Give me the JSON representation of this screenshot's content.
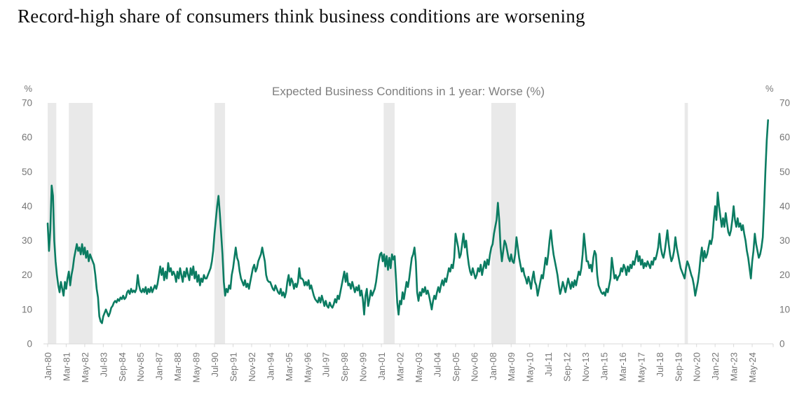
{
  "page": {
    "title": "Record-high share of consumers think business conditions are worsening"
  },
  "chart_data": {
    "type": "line",
    "title": "Expected Business Conditions in 1 year: Worse (%)",
    "unit_label": "%",
    "ylim": [
      0,
      70
    ],
    "yticks": [
      0,
      10,
      20,
      30,
      40,
      50,
      60,
      70
    ],
    "x_first_month": "Jan-80",
    "x_tick_month_step": 14,
    "x_tick_labels": [
      "Jan-80",
      "Mar-81",
      "May-82",
      "Jul-83",
      "Sep-84",
      "Nov-85",
      "Jan-87",
      "Mar-88",
      "May-89",
      "Jul-90",
      "Sep-91",
      "Nov-92",
      "Jan-94",
      "Mar-95",
      "May-96",
      "Jul-97",
      "Sep-98",
      "Nov-99",
      "Jan-01",
      "Mar-02",
      "May-03",
      "Jul-04",
      "Sep-05",
      "Nov-06",
      "Jan-08",
      "Mar-09",
      "May-10",
      "Jul-11",
      "Sep-12",
      "Nov-13",
      "Jan-15",
      "Mar-16",
      "May-17",
      "Jul-18",
      "Sep-19",
      "Nov-20",
      "Jan-22",
      "Mar-23",
      "May-24"
    ],
    "recession_bands_months": [
      [
        0,
        6.5
      ],
      [
        16,
        34
      ],
      [
        126,
        134
      ],
      [
        253.7,
        262
      ],
      [
        335,
        353.5
      ],
      [
        481,
        483.5
      ]
    ],
    "colors": {
      "line": "#0b7c62",
      "recession_band": "#e9e9e9",
      "axis": "#d9d9d9",
      "tick_label": "#767676",
      "chart_title": "#7f7f7f",
      "page_title": "#0d0d0d"
    },
    "values_monthly_from_jan_1980": [
      35,
      27,
      33,
      46,
      43,
      30,
      24,
      20,
      17,
      15,
      18,
      16,
      14,
      18,
      16,
      19,
      21,
      17,
      20,
      22,
      25,
      27,
      29,
      27,
      28,
      26,
      29,
      26,
      28,
      25,
      27,
      24,
      26,
      25,
      24,
      23,
      20,
      16,
      13.5,
      8,
      6.5,
      6,
      8,
      9,
      10,
      9,
      8,
      9,
      10.5,
      11,
      12,
      12.5,
      12,
      13,
      12.5,
      13.5,
      13,
      14,
      13,
      13.5,
      15,
      15.5,
      14.5,
      16,
      15,
      15.5,
      15,
      16,
      20,
      17,
      15.5,
      15,
      16,
      15,
      16.5,
      14.5,
      16,
      15,
      16.5,
      15,
      16,
      17,
      16,
      17.5,
      20,
      22.5,
      20,
      22,
      18.5,
      21,
      19,
      23.5,
      21,
      22,
      20,
      21,
      20,
      18,
      21,
      19,
      22,
      20,
      18,
      21,
      19.5,
      22,
      20,
      18.5,
      22,
      20,
      22.5,
      19,
      21,
      18,
      20,
      17,
      19,
      18,
      20,
      19,
      19,
      20,
      21,
      22,
      24,
      27,
      32,
      36,
      40,
      43,
      38,
      32,
      26,
      18,
      14,
      16,
      15,
      17,
      16,
      20,
      22,
      25,
      28,
      25,
      24,
      21,
      19,
      18,
      17,
      18.5,
      16.5,
      17.5,
      16,
      18,
      20,
      22,
      23,
      21,
      22,
      24,
      25,
      26,
      28,
      26,
      24,
      20,
      18.5,
      18,
      18,
      17,
      16,
      15.5,
      17,
      16,
      15,
      14.5,
      16,
      14,
      15,
      13.5,
      15,
      18,
      20,
      17,
      19,
      18,
      16,
      17.5,
      16.5,
      18,
      22,
      19,
      19,
      18.5,
      17,
      18,
      17,
      18.5,
      16,
      17,
      15.5,
      14,
      13,
      12.5,
      12,
      13.5,
      12,
      14,
      12.5,
      11,
      12.5,
      11,
      10.5,
      12,
      11,
      10.5,
      11.5,
      13,
      12,
      14,
      13,
      15,
      17,
      19,
      21,
      18,
      20.5,
      17,
      17.5,
      16,
      18,
      16.5,
      15,
      16.5,
      15.5,
      17,
      14,
      15.5,
      13,
      8.5,
      14,
      16,
      11,
      13,
      15.5,
      14,
      15,
      16,
      18,
      21,
      24,
      26,
      26.5,
      24,
      26,
      22.5,
      25.5,
      21.5,
      25,
      22,
      26,
      24.5,
      25.5,
      19,
      12,
      8.5,
      12.5,
      11.5,
      15,
      13,
      15.5,
      18,
      16.5,
      19,
      22,
      25,
      26,
      28,
      24,
      15,
      12.5,
      15,
      14,
      16,
      15,
      16.5,
      14.5,
      15.5,
      14,
      12,
      10,
      12.5,
      14,
      13,
      15,
      16.5,
      15,
      17,
      18.5,
      17,
      19,
      18,
      20,
      22,
      21,
      23,
      22,
      25,
      32,
      30,
      28,
      25,
      26,
      29,
      32,
      28,
      30,
      26,
      23,
      21,
      20,
      22,
      20.5,
      19,
      20,
      22,
      21,
      23,
      20,
      22,
      24,
      22,
      24.5,
      23,
      26,
      28,
      29,
      32,
      34,
      36,
      41,
      36,
      28,
      24,
      27,
      30,
      29,
      27,
      25,
      24,
      26,
      24,
      23.5,
      26,
      31,
      28,
      25,
      23,
      21,
      22,
      20,
      19,
      17.5,
      19.5,
      18,
      16,
      19,
      21,
      18,
      17,
      14,
      16,
      18,
      20,
      19,
      22,
      25,
      23,
      26,
      30,
      33,
      29,
      26,
      24,
      22,
      20,
      17,
      14.5,
      16,
      18,
      16.5,
      15,
      17,
      19,
      17.5,
      16,
      18,
      16.5,
      18.5,
      17,
      19,
      21,
      20,
      22,
      26,
      32,
      28,
      24,
      24,
      22,
      23,
      21,
      25,
      27,
      26,
      20,
      17,
      16,
      15,
      14.5,
      15,
      14,
      16,
      15,
      17,
      19,
      25,
      22,
      19,
      20,
      18.5,
      19.5,
      20,
      22,
      21,
      23,
      22,
      20,
      22.5,
      21,
      23,
      22,
      24,
      23,
      25,
      27,
      24,
      25.5,
      23,
      24.5,
      22,
      23.5,
      22.5,
      24,
      23,
      22,
      24,
      23,
      25,
      24.5,
      26,
      28,
      32,
      28,
      26,
      25,
      27,
      30,
      33,
      29,
      26,
      24,
      25,
      27,
      31,
      28,
      26,
      24,
      22,
      21,
      20,
      19,
      22,
      24,
      23,
      21.5,
      20,
      19,
      17,
      14,
      16,
      18,
      21,
      25,
      28,
      24,
      27,
      25,
      26,
      28,
      30,
      29,
      31,
      36,
      40,
      36,
      44,
      40,
      37,
      34,
      36.5,
      34,
      38,
      35,
      32.5,
      31.5,
      33,
      36,
      40,
      36,
      34,
      36.5,
      34,
      35,
      33,
      34.5,
      32,
      30,
      27,
      25,
      22,
      19,
      24,
      27,
      32,
      29,
      27,
      25,
      26,
      28,
      31,
      40,
      50,
      59,
      65
    ]
  }
}
